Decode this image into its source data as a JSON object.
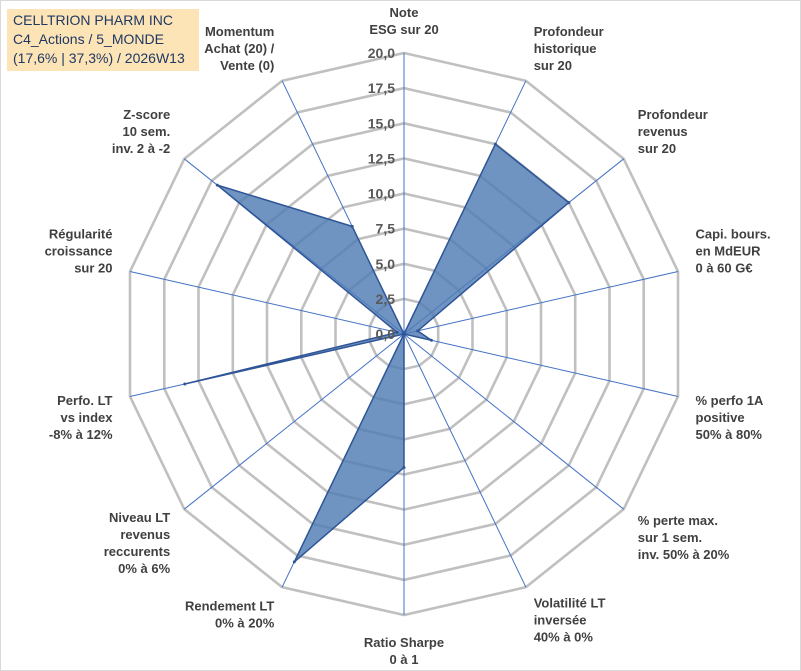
{
  "title_box": {
    "line1": "CELLTRION PHARM INC",
    "line2": "C4_Actions / 5_MONDE",
    "line3": "(17,6% | 37,3%) / 2026W13"
  },
  "colors": {
    "grid": "#c0c0c0",
    "spoke": "#4472c4",
    "series_fill": "#4f7db5",
    "series_stroke": "#2f5597",
    "title_bg": "#fce4b6",
    "title_text": "#1f3864"
  },
  "chart_data": {
    "type": "radar",
    "rmin": 0,
    "rmax": 20,
    "tick_step": 2.5,
    "tick_labels": [
      "0,0",
      "2,5",
      "5,0",
      "7,5",
      "10,0",
      "12,5",
      "15,0",
      "17,5",
      "20,0"
    ],
    "categories": [
      [
        "Note",
        "ESG sur 20"
      ],
      [
        "Profondeur",
        "historique",
        "sur 20"
      ],
      [
        "Profondeur",
        "revenus",
        "sur 20"
      ],
      [
        "Capi. bours.",
        "en MdEUR",
        "0 à 60 G€"
      ],
      [
        "% perfo 1A",
        "positive",
        "50% à 80%"
      ],
      [
        "% perte max.",
        "sur 1 sem.",
        "inv. 50% à 20%"
      ],
      [
        "Volatilité LT",
        "inversée",
        "40% à 0%"
      ],
      [
        "Ratio Sharpe",
        "0 à 1"
      ],
      [
        "Rendement LT",
        "0% à 20%"
      ],
      [
        "Niveau LT",
        "revenus",
        "reccurents",
        "0% à 6%"
      ],
      [
        "Perfo. LT",
        "vs index",
        "-8% à 12%"
      ],
      [
        "Régularité",
        "croissance",
        "sur 20"
      ],
      [
        "Z-score",
        "10 sem.",
        "inv. 2 à -2"
      ],
      [
        "Momentum",
        "Achat (20) /",
        "Vente (0)"
      ]
    ],
    "values": [
      0,
      15,
      15,
      1,
      2,
      0,
      0,
      9.5,
      18,
      0,
      16,
      0.5,
      17,
      8.5
    ],
    "grid": true,
    "legend": "none"
  }
}
